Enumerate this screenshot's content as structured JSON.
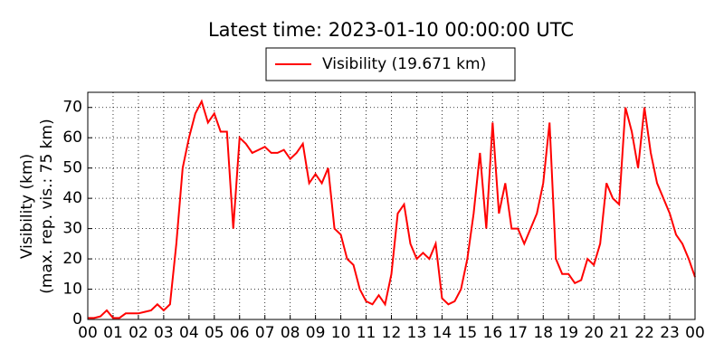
{
  "chart_data": {
    "type": "line",
    "title": "Latest time: 2023-01-10 00:00:00 UTC",
    "ylabel": [
      "Visibility (km)",
      "(max. rep. vis.: 75 km)"
    ],
    "x": [
      0,
      0.25,
      0.5,
      0.75,
      1,
      1.25,
      1.5,
      1.75,
      2,
      2.25,
      2.5,
      2.75,
      3,
      3.25,
      3.5,
      3.75,
      4,
      4.25,
      4.5,
      4.75,
      5,
      5.25,
      5.5,
      5.75,
      6,
      6.25,
      6.5,
      6.75,
      7,
      7.25,
      7.5,
      7.75,
      8,
      8.25,
      8.5,
      8.75,
      9,
      9.25,
      9.5,
      9.75,
      10,
      10.25,
      10.5,
      10.75,
      11,
      11.25,
      11.5,
      11.75,
      12,
      12.25,
      12.5,
      12.75,
      13,
      13.25,
      13.5,
      13.75,
      14,
      14.25,
      14.5,
      14.75,
      15,
      15.25,
      15.5,
      15.75,
      16,
      16.25,
      16.5,
      16.75,
      17,
      17.25,
      17.5,
      17.75,
      18,
      18.25,
      18.5,
      18.75,
      19,
      19.25,
      19.5,
      19.75,
      20,
      20.25,
      20.5,
      20.75,
      21,
      21.25,
      21.5,
      21.75,
      22,
      22.25,
      22.5,
      22.75,
      23,
      23.25,
      23.5,
      23.75,
      24
    ],
    "series": [
      {
        "name": "Visibility (19.671 km)",
        "color": "#ff0000",
        "values": [
          0.5,
          0.5,
          1,
          3,
          0.5,
          0.5,
          2,
          2,
          2,
          2.5,
          3,
          5,
          3,
          5,
          25,
          50,
          60,
          68,
          72,
          65,
          68,
          62,
          62,
          30,
          60,
          58,
          55,
          56,
          57,
          55,
          55,
          56,
          53,
          55,
          58,
          45,
          48,
          45,
          50,
          30,
          28,
          20,
          18,
          10,
          6,
          5,
          8,
          5,
          15,
          35,
          38,
          25,
          20,
          22,
          20,
          25,
          7,
          5,
          6,
          10,
          20,
          35,
          55,
          30,
          65,
          35,
          45,
          30,
          30,
          25,
          30,
          35,
          45,
          65,
          20,
          15,
          15,
          12,
          13,
          20,
          18,
          25,
          45,
          40,
          38,
          70,
          62,
          50,
          70,
          55,
          45,
          40,
          35,
          28,
          25,
          20,
          14
        ]
      }
    ],
    "xlim": [
      0,
      24
    ],
    "ylim": [
      0,
      75
    ],
    "xticks": [
      {
        "value": 0,
        "label": "00"
      },
      {
        "value": 1,
        "label": "01"
      },
      {
        "value": 2,
        "label": "02"
      },
      {
        "value": 3,
        "label": "03"
      },
      {
        "value": 4,
        "label": "04"
      },
      {
        "value": 5,
        "label": "05"
      },
      {
        "value": 6,
        "label": "06"
      },
      {
        "value": 7,
        "label": "07"
      },
      {
        "value": 8,
        "label": "08"
      },
      {
        "value": 9,
        "label": "09"
      },
      {
        "value": 10,
        "label": "10"
      },
      {
        "value": 11,
        "label": "11"
      },
      {
        "value": 12,
        "label": "12"
      },
      {
        "value": 13,
        "label": "13"
      },
      {
        "value": 14,
        "label": "14"
      },
      {
        "value": 15,
        "label": "15"
      },
      {
        "value": 16,
        "label": "16"
      },
      {
        "value": 17,
        "label": "17"
      },
      {
        "value": 18,
        "label": "18"
      },
      {
        "value": 19,
        "label": "19"
      },
      {
        "value": 20,
        "label": "20"
      },
      {
        "value": 21,
        "label": "21"
      },
      {
        "value": 22,
        "label": "22"
      },
      {
        "value": 23,
        "label": "23"
      },
      {
        "value": 24,
        "label": "00"
      }
    ],
    "yticks": [
      0,
      10,
      20,
      30,
      40,
      50,
      60,
      70
    ],
    "grid": true
  }
}
